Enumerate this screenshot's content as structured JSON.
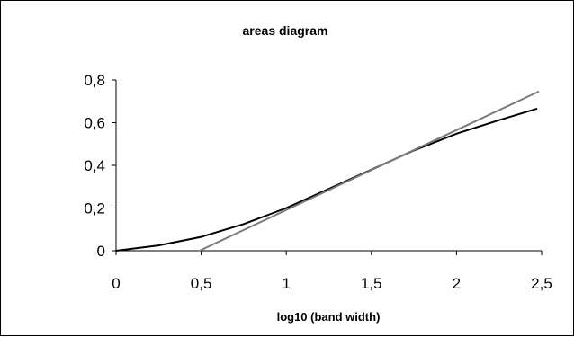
{
  "chart_data": {
    "type": "line",
    "title": "areas diagram",
    "xlabel": "log10 (band width)",
    "ylabel": "",
    "xlim": [
      0,
      2.5
    ],
    "ylim": [
      0,
      0.8
    ],
    "x_ticks": [
      "0",
      "0,5",
      "1",
      "1,5",
      "2",
      "2,5"
    ],
    "y_ticks": [
      "0",
      "0,2",
      "0,4",
      "0,6",
      "0,8"
    ],
    "grid": false,
    "legend": "none",
    "series": [
      {
        "color": "#000000",
        "points": [
          [
            0,
            0
          ],
          [
            0.25,
            0.025
          ],
          [
            0.5,
            0.065
          ],
          [
            0.75,
            0.125
          ],
          [
            1.0,
            0.2
          ],
          [
            1.25,
            0.29
          ],
          [
            1.5,
            0.38
          ],
          [
            1.75,
            0.47
          ],
          [
            2.0,
            0.548
          ],
          [
            2.25,
            0.612
          ],
          [
            2.47,
            0.665
          ]
        ]
      },
      {
        "color": "#7a7a7a",
        "points": [
          [
            0.49,
            0
          ],
          [
            2.48,
            0.745
          ]
        ]
      }
    ]
  }
}
